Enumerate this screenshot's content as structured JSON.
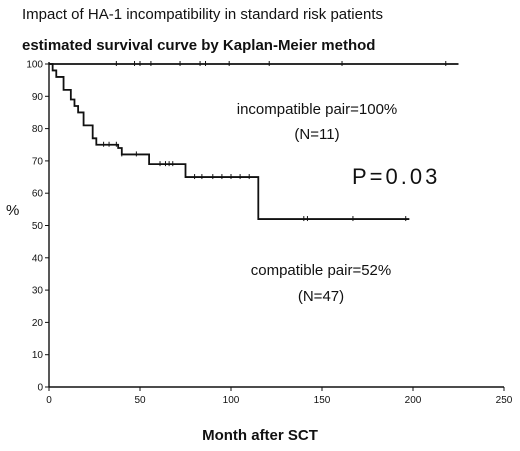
{
  "chart_data": {
    "type": "line",
    "title": "Impact of HA-1 incompatibility in standard risk patients",
    "subtitle": "estimated survival curve by Kaplan-Meier method",
    "xlabel": "Month after SCT",
    "ylabel": "%",
    "xlim": [
      0,
      250
    ],
    "ylim": [
      0,
      100
    ],
    "x_ticks": [
      "0",
      "50",
      "100",
      "150",
      "200",
      "250"
    ],
    "y_ticks": [
      "0",
      "10",
      "20",
      "30",
      "40",
      "50",
      "60",
      "70",
      "80",
      "90",
      "100"
    ],
    "series": [
      {
        "step_points": [
          [
            0,
            100
          ],
          [
            225,
            100
          ]
        ],
        "censor_x": [
          37,
          47,
          50,
          56,
          72,
          83,
          86,
          99,
          121,
          161,
          218
        ]
      },
      {
        "step_points": [
          [
            0,
            100
          ],
          [
            2,
            98
          ],
          [
            4,
            96
          ],
          [
            8,
            92
          ],
          [
            12,
            89
          ],
          [
            14,
            87
          ],
          [
            16,
            85
          ],
          [
            19,
            81
          ],
          [
            24,
            77
          ],
          [
            26,
            75
          ],
          [
            38,
            74
          ],
          [
            40,
            72
          ],
          [
            55,
            69
          ],
          [
            75,
            65
          ],
          [
            115,
            52
          ],
          [
            198,
            52
          ]
        ],
        "censor_x": [
          30,
          33,
          37,
          40,
          48,
          61,
          64,
          66,
          68,
          80,
          84,
          90,
          95,
          100,
          105,
          110,
          140,
          142,
          167,
          196
        ]
      }
    ]
  },
  "annotations": {
    "incompatible_label": "incompatible pair=100%",
    "incompatible_n": "(N=11)",
    "compatible_label": "compatible pair=52%",
    "compatible_n": "(N=47)",
    "p_value": "P=0.03"
  }
}
